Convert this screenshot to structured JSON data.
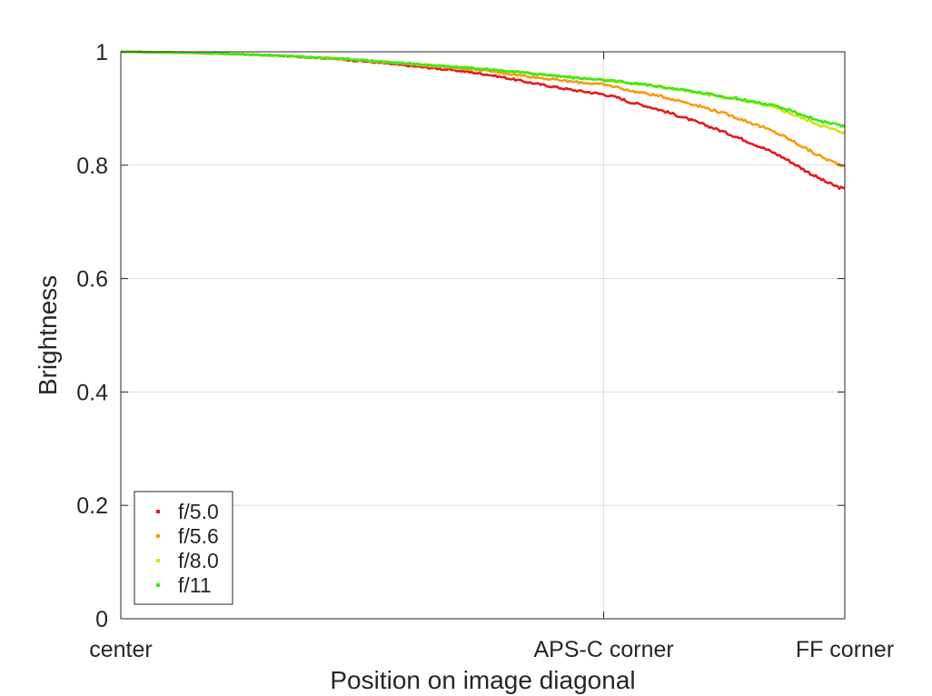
{
  "chart_data": {
    "type": "line",
    "title": "",
    "xlabel": "Position on image diagonal",
    "ylabel": "Brightness",
    "xlim": [
      0,
      1
    ],
    "ylim": [
      0,
      1
    ],
    "grid": true,
    "legend_position": "bottom-left",
    "x_ticks": [
      {
        "value": 0,
        "label": "center"
      },
      {
        "value": 0.667,
        "label": "APS-C corner"
      },
      {
        "value": 1,
        "label": "FF corner"
      }
    ],
    "y_ticks": [
      {
        "value": 0,
        "label": "0"
      },
      {
        "value": 0.2,
        "label": "0.2"
      },
      {
        "value": 0.4,
        "label": "0.4"
      },
      {
        "value": 0.6,
        "label": "0.6"
      },
      {
        "value": 0.8,
        "label": "0.8"
      },
      {
        "value": 1,
        "label": "1"
      }
    ],
    "x": [
      0,
      0.1,
      0.2,
      0.3,
      0.4,
      0.5,
      0.6,
      0.667,
      0.7,
      0.8,
      0.9,
      1.0
    ],
    "series": [
      {
        "name": "f/5.0",
        "color": "#e41a1c",
        "values": [
          1.0,
          0.998,
          0.994,
          0.987,
          0.975,
          0.961,
          0.938,
          0.925,
          0.912,
          0.874,
          0.823,
          0.758
        ]
      },
      {
        "name": "f/5.6",
        "color": "#f39c12",
        "values": [
          1.0,
          0.998,
          0.994,
          0.988,
          0.978,
          0.967,
          0.951,
          0.942,
          0.932,
          0.904,
          0.86,
          0.799
        ]
      },
      {
        "name": "f/8.0",
        "color": "#d4e10f",
        "values": [
          1.0,
          0.998,
          0.994,
          0.988,
          0.979,
          0.97,
          0.958,
          0.95,
          0.945,
          0.927,
          0.902,
          0.858
        ]
      },
      {
        "name": "f/11",
        "color": "#3ce81b",
        "values": [
          1.0,
          0.998,
          0.994,
          0.988,
          0.979,
          0.97,
          0.958,
          0.95,
          0.945,
          0.928,
          0.905,
          0.868
        ]
      }
    ]
  }
}
